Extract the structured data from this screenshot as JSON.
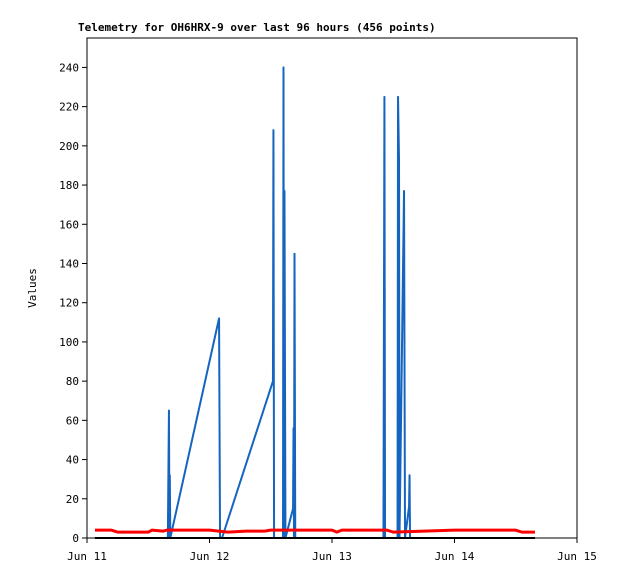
{
  "chart_data": {
    "type": "line",
    "title": "Telemetry for OH6HRX-9 over last 96 hours (456 points)",
    "y_label": "Values",
    "ylim": [
      0,
      255
    ],
    "yticks": [
      0,
      20,
      40,
      60,
      80,
      100,
      120,
      140,
      160,
      180,
      200,
      220,
      240
    ],
    "xlim": [
      0,
      4
    ],
    "xticks": [
      {
        "value": 0,
        "label": "Jun 11"
      },
      {
        "value": 1,
        "label": "Jun 12"
      },
      {
        "value": 2,
        "label": "Jun 13"
      },
      {
        "value": 3,
        "label": "Jun 14"
      },
      {
        "value": 4,
        "label": "Jun 15"
      }
    ],
    "series": [
      {
        "color": "#1565c0",
        "x": [
          0.66,
          0.669,
          0.673,
          0.676,
          0.68,
          1.078,
          1.086,
          1.102,
          1.518,
          1.522,
          1.527,
          1.6,
          1.604,
          1.608,
          1.612,
          1.62,
          1.682,
          1.686,
          1.69,
          1.694,
          1.7,
          2.42,
          2.424,
          2.428,
          2.433,
          2.535,
          2.539,
          2.547,
          2.551,
          2.588,
          2.592,
          2.596,
          2.629,
          2.633,
          2.637
        ],
        "values": [
          0,
          65,
          0,
          32,
          0,
          112,
          0,
          0,
          80,
          208,
          0,
          0,
          240,
          0,
          177,
          0,
          15,
          56,
          0,
          145,
          0,
          0,
          112,
          225,
          0,
          0,
          225,
          193,
          0,
          177,
          88,
          0,
          16,
          32,
          0
        ]
      },
      {
        "color": "#ff0000",
        "x": [
          0.065,
          0.2,
          0.25,
          0.5,
          0.53,
          0.62,
          0.65,
          1.0,
          1.15,
          1.3,
          1.45,
          1.5,
          2.0,
          2.04,
          2.08,
          2.45,
          2.5,
          3.0,
          3.5,
          3.55,
          3.657
        ],
        "values": [
          4,
          4,
          3,
          3,
          4,
          3.5,
          4,
          4,
          3,
          3.5,
          3.5,
          4,
          4,
          3,
          4,
          4,
          3,
          4,
          4,
          3,
          3
        ]
      },
      {
        "color": "#000000",
        "x": [
          0.065,
          3.657
        ],
        "values": [
          0,
          0
        ]
      }
    ]
  }
}
